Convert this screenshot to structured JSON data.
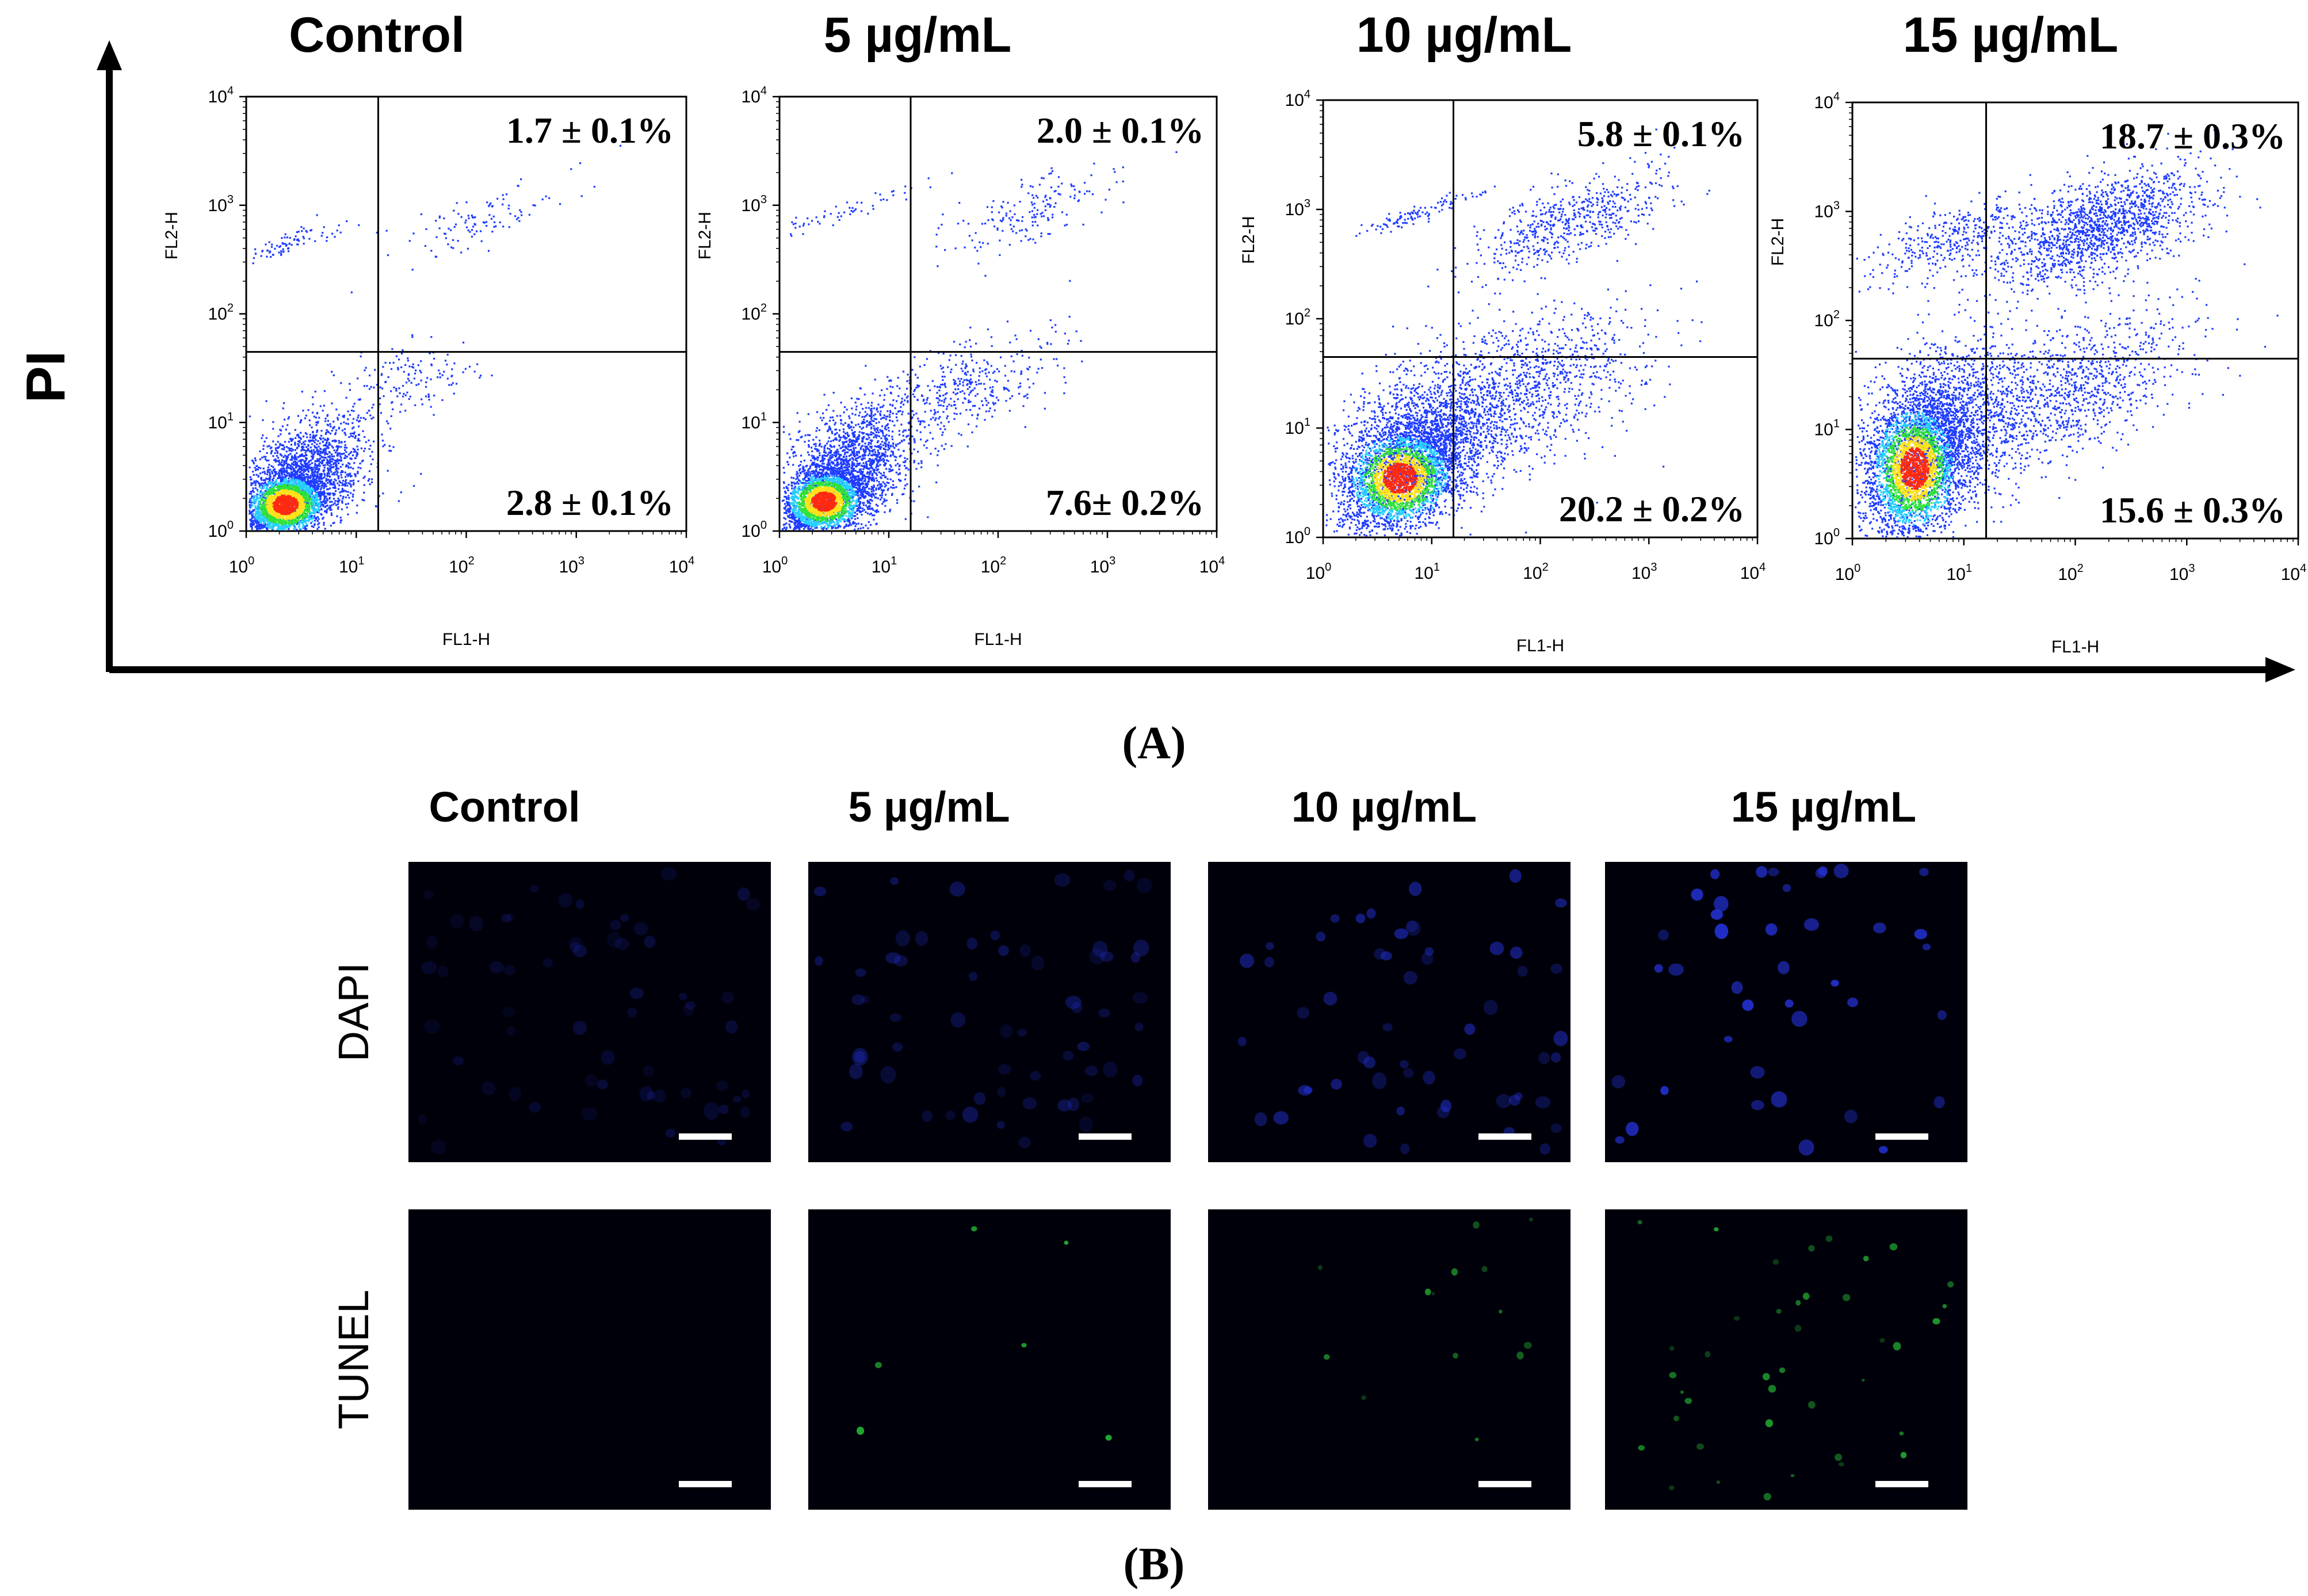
{
  "panel_a": {
    "label": "(A)",
    "y_axis_label": "PI",
    "panels": [
      {
        "title": "Control",
        "upper_right": "1.7 ± 0.1%",
        "lower_right": "2.8 ± 0.1%"
      },
      {
        "title": "5 µg/mL",
        "upper_right": "2.0 ± 0.1%",
        "lower_right": "7.6± 0.2%"
      },
      {
        "title": "10 µg/mL",
        "upper_right": "5.8 ± 0.1%",
        "lower_right": "20.2 ± 0.2%"
      },
      {
        "title": "15 µg/mL",
        "upper_right": "18.7 ± 0.3%",
        "lower_right": "15.6 ± 0.3%"
      }
    ],
    "plot_x_label": "FL1-H",
    "plot_y_label": "FL2-H",
    "tick_base": "10",
    "tick_exponents": [
      "0",
      "1",
      "2",
      "3",
      "4"
    ]
  },
  "panel_b": {
    "label": "(B)",
    "columns": [
      "Control",
      "5 µg/mL",
      "10 µg/mL",
      "15 µg/mL"
    ],
    "rows": [
      "DAPI",
      "TUNEL"
    ]
  },
  "chart_data": [
    {
      "type": "scatter",
      "title": "Control",
      "xlabel": "FL1-H",
      "ylabel": "FL2-H",
      "x_scale": "log",
      "y_scale": "log",
      "xlim": [
        1,
        10000
      ],
      "ylim": [
        1,
        10000
      ],
      "quadrants": {
        "upper_right_percent": 1.7,
        "upper_right_sd": 0.1,
        "lower_right_percent": 2.8,
        "lower_right_sd": 0.1
      }
    },
    {
      "type": "scatter",
      "title": "5 µg/mL",
      "xlabel": "FL1-H",
      "ylabel": "FL2-H",
      "x_scale": "log",
      "y_scale": "log",
      "xlim": [
        1,
        10000
      ],
      "ylim": [
        1,
        10000
      ],
      "quadrants": {
        "upper_right_percent": 2.0,
        "upper_right_sd": 0.1,
        "lower_right_percent": 7.6,
        "lower_right_sd": 0.2
      }
    },
    {
      "type": "scatter",
      "title": "10 µg/mL",
      "xlabel": "FL1-H",
      "ylabel": "FL2-H",
      "x_scale": "log",
      "y_scale": "log",
      "xlim": [
        1,
        10000
      ],
      "ylim": [
        1,
        10000
      ],
      "quadrants": {
        "upper_right_percent": 5.8,
        "upper_right_sd": 0.1,
        "lower_right_percent": 20.2,
        "lower_right_sd": 0.2
      }
    },
    {
      "type": "scatter",
      "title": "15 µg/mL",
      "xlabel": "FL1-H",
      "ylabel": "FL2-H",
      "x_scale": "log",
      "y_scale": "log",
      "xlim": [
        1,
        10000
      ],
      "ylim": [
        1,
        10000
      ],
      "quadrants": {
        "upper_right_percent": 18.7,
        "upper_right_sd": 0.3,
        "lower_right_percent": 15.6,
        "lower_right_sd": 0.3
      }
    }
  ],
  "colors": {
    "dot_blue": "#1e3cff",
    "density_cyan": "#27d0ff",
    "density_green": "#2fe33a",
    "density_yellow": "#ffe21a",
    "density_red": "#ff2a10",
    "micrograph_bg": "#00000a",
    "dapi_nucleus": "#2432d8",
    "tunel_signal": "#29d23a",
    "scale_bar": "#ffffff"
  }
}
